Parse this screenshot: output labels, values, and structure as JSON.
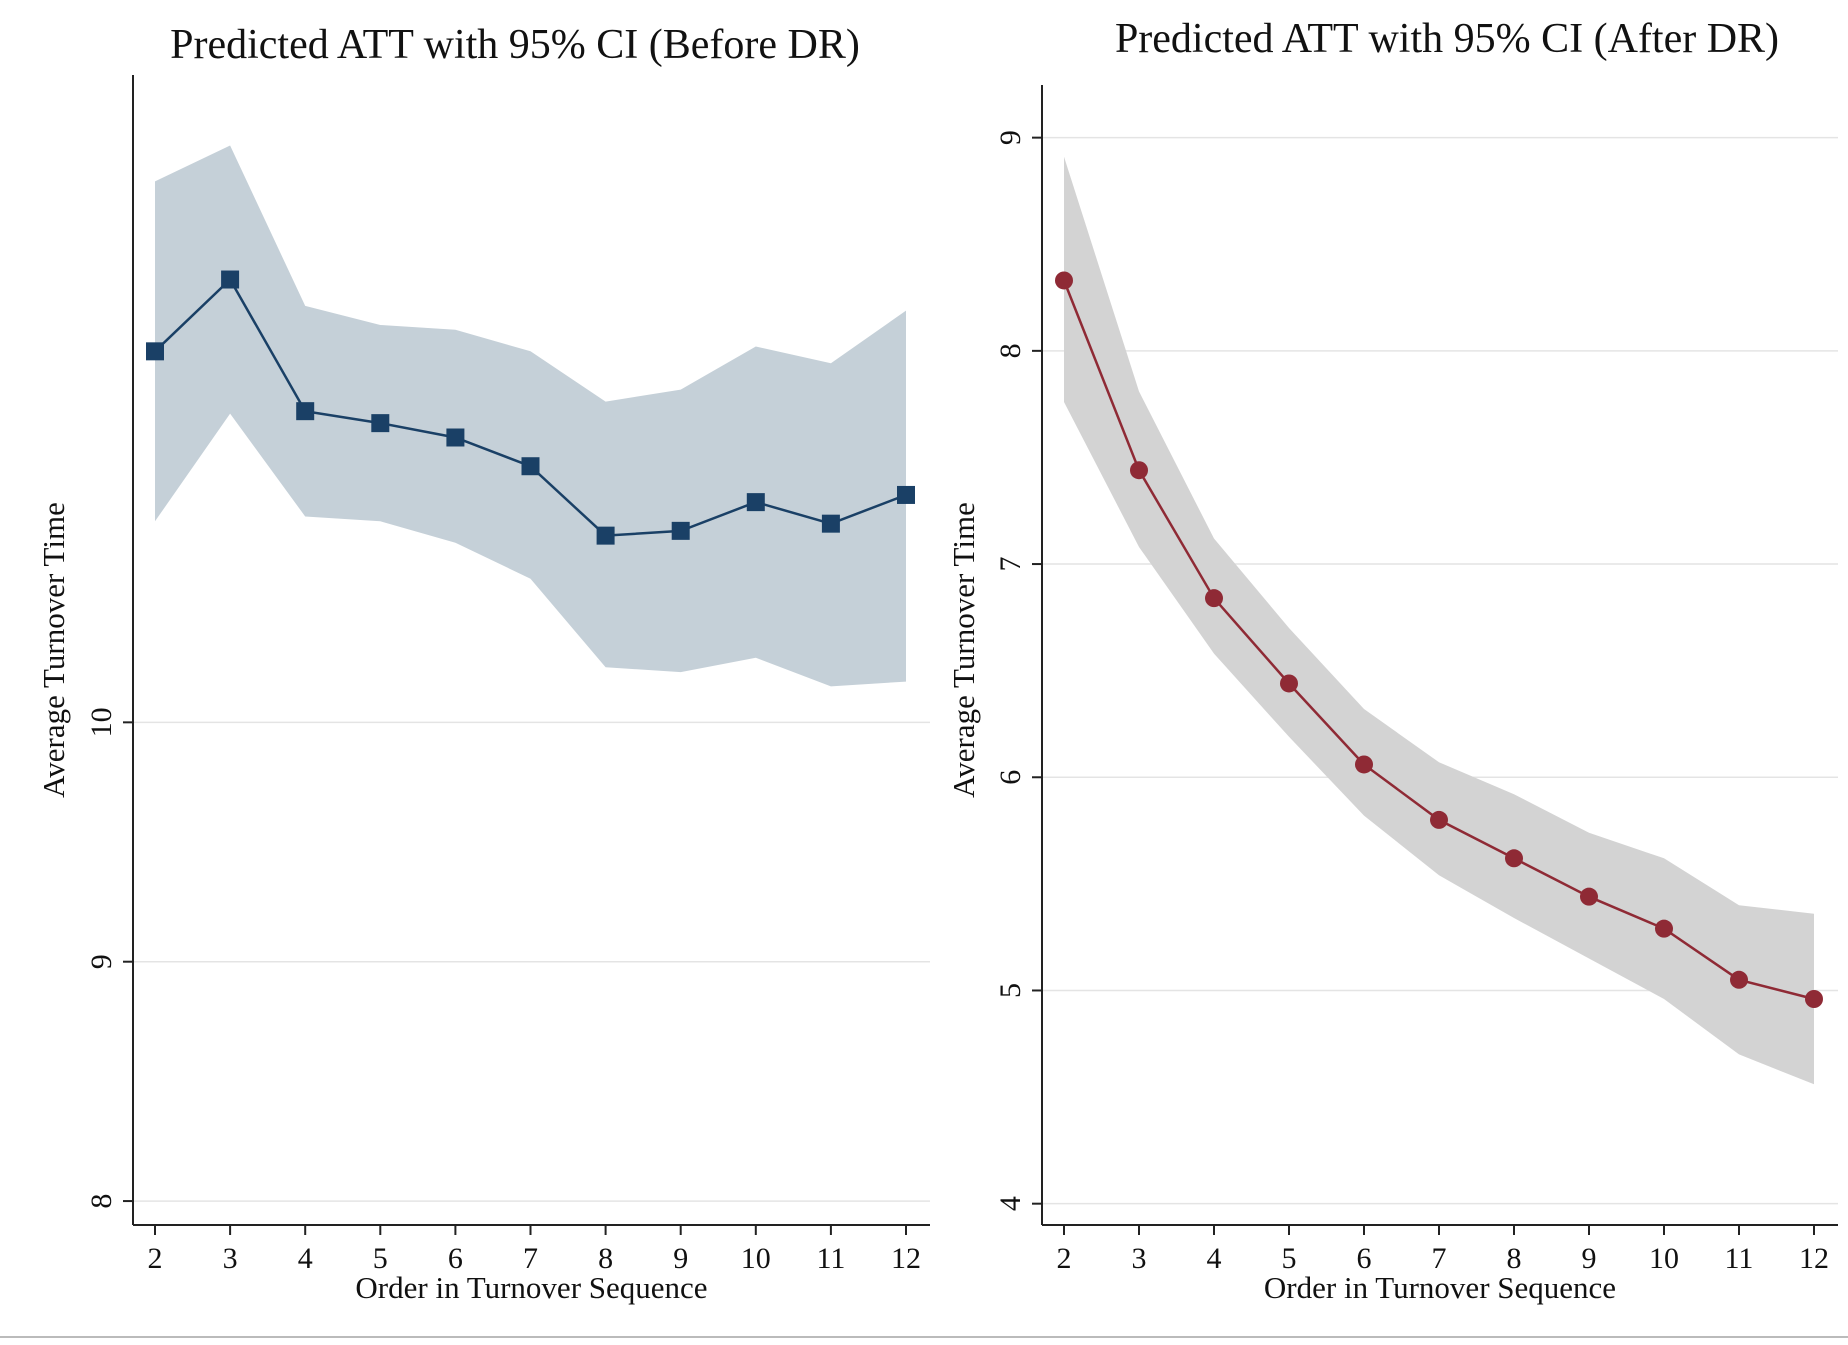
{
  "chart_data": [
    {
      "type": "line",
      "title": "Predicted ATT with 95% CI (Before DR)",
      "xlabel": "Order in Turnover Sequence",
      "ylabel": "Average Turnover Time",
      "x": [
        2,
        3,
        4,
        5,
        6,
        7,
        8,
        9,
        10,
        11,
        12
      ],
      "xticks": [
        "2",
        "3",
        "4",
        "5",
        "6",
        "7",
        "8",
        "9",
        "10",
        "11",
        "12"
      ],
      "yticks": [
        "8",
        "9",
        "10"
      ],
      "ytick_values": [
        8,
        9,
        10
      ],
      "ylim": [
        7.9,
        12.6
      ],
      "grid": true,
      "series": [
        {
          "values": [
            11.55,
            11.85,
            11.3,
            11.25,
            11.19,
            11.07,
            10.78,
            10.8,
            10.92,
            10.83,
            10.95
          ],
          "ci_lower": [
            10.84,
            11.29,
            10.86,
            10.84,
            10.75,
            10.6,
            10.23,
            10.21,
            10.27,
            10.15,
            10.17
          ],
          "ci_upper": [
            12.26,
            12.41,
            11.74,
            11.66,
            11.64,
            11.55,
            11.34,
            11.39,
            11.57,
            11.5,
            11.72
          ],
          "color": "#1a4066",
          "band_color": "#c5d0d8",
          "marker": "square"
        }
      ]
    },
    {
      "type": "line",
      "title": "Predicted ATT with 95% CI (After DR)",
      "xlabel": "Order in Turnover Sequence",
      "ylabel": "Average Turnover Time",
      "x": [
        2,
        3,
        4,
        5,
        6,
        7,
        8,
        9,
        10,
        11,
        12
      ],
      "xticks": [
        "2",
        "3",
        "4",
        "5",
        "6",
        "7",
        "8",
        "9",
        "10",
        "11",
        "12"
      ],
      "yticks": [
        "4",
        "5",
        "6",
        "7",
        "8",
        "9"
      ],
      "ytick_values": [
        4,
        5,
        6,
        7,
        8,
        9
      ],
      "ylim": [
        3.9,
        9.2
      ],
      "grid": true,
      "series": [
        {
          "values": [
            8.33,
            7.44,
            6.84,
            6.44,
            6.06,
            5.8,
            5.62,
            5.44,
            5.29,
            5.05,
            4.96
          ],
          "ci_lower": [
            7.76,
            7.08,
            6.58,
            6.19,
            5.82,
            5.54,
            5.34,
            5.15,
            4.96,
            4.7,
            4.56
          ],
          "ci_upper": [
            8.91,
            7.81,
            7.12,
            6.7,
            6.32,
            6.07,
            5.92,
            5.74,
            5.62,
            5.4,
            5.36
          ],
          "color": "#8f2a35",
          "band_color": "#d3d3d3",
          "marker": "circle"
        }
      ]
    }
  ]
}
